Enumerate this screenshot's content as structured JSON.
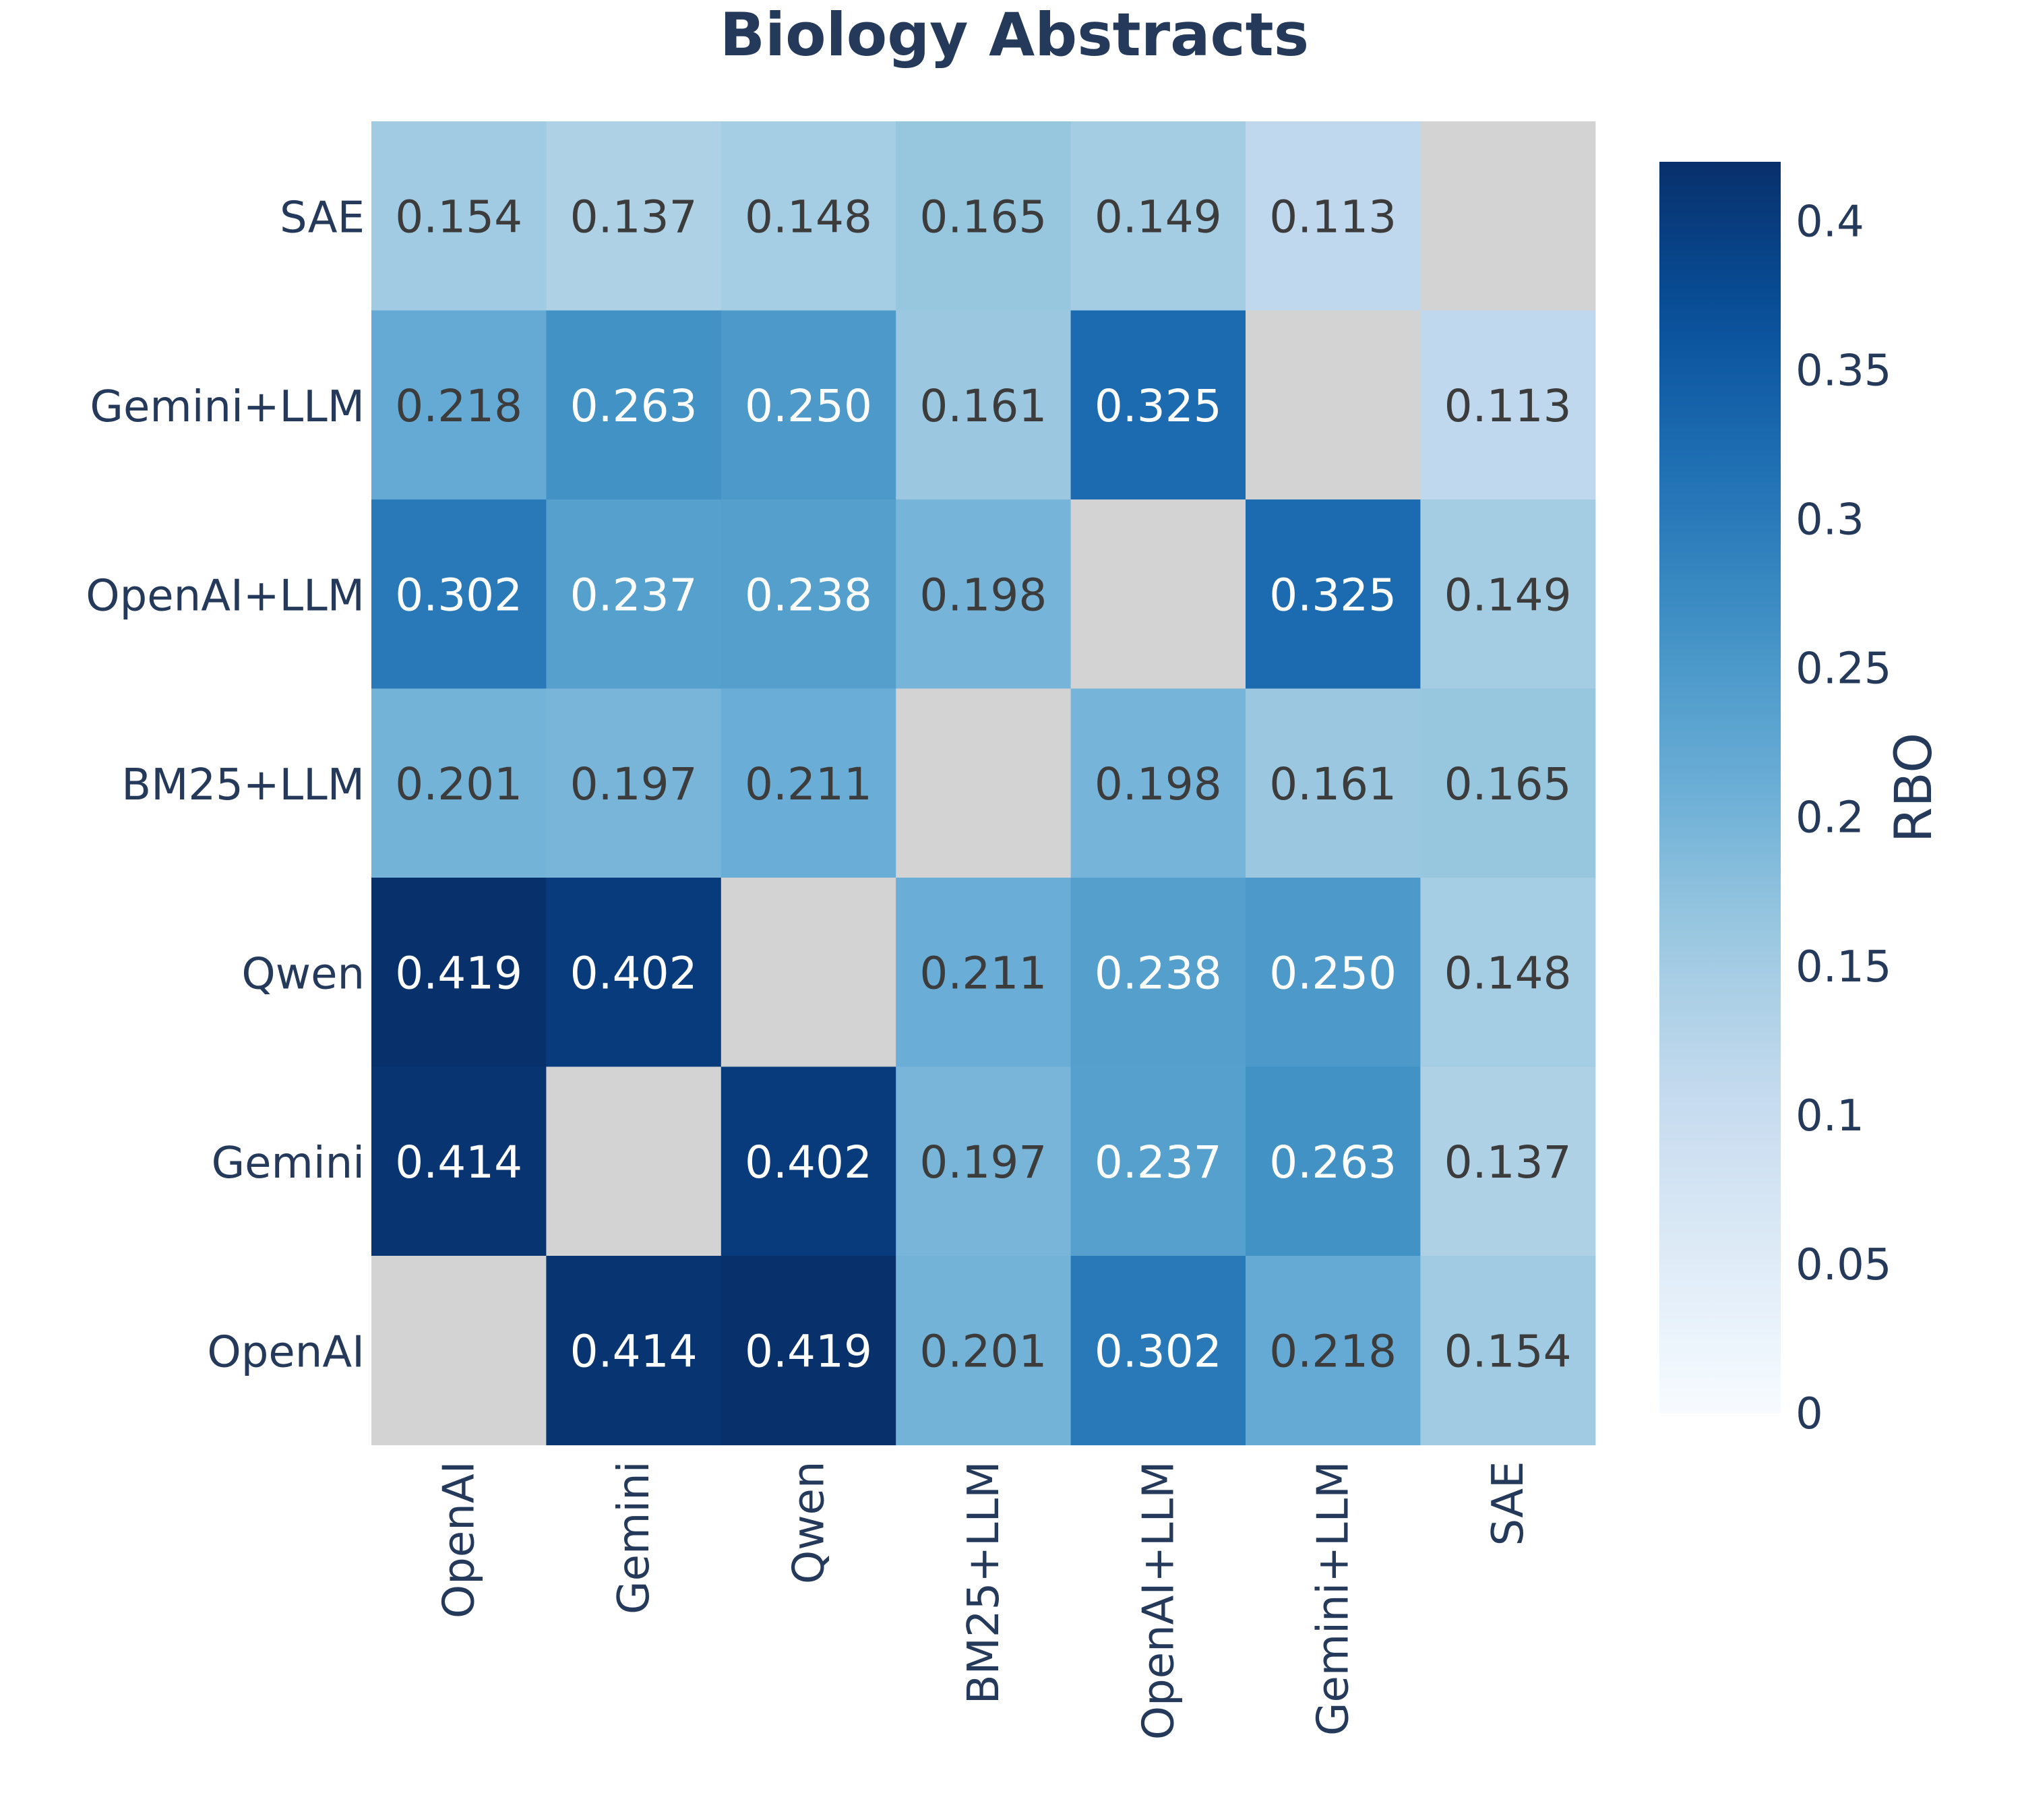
{
  "chart_data": {
    "type": "heatmap",
    "title": "Biology Abstracts",
    "x_categories": [
      "OpenAI",
      "Gemini",
      "Qwen",
      "BM25+LLM",
      "OpenAI+LLM",
      "Gemini+LLM",
      "SAE"
    ],
    "y_categories": [
      "SAE",
      "Gemini+LLM",
      "OpenAI+LLM",
      "BM25+LLM",
      "Qwen",
      "Gemini",
      "OpenAI"
    ],
    "values": [
      [
        0.154,
        0.137,
        0.148,
        0.165,
        0.149,
        0.113,
        null
      ],
      [
        0.218,
        0.263,
        0.25,
        0.161,
        0.325,
        null,
        0.113
      ],
      [
        0.302,
        0.237,
        0.238,
        0.198,
        null,
        0.325,
        0.149
      ],
      [
        0.201,
        0.197,
        0.211,
        null,
        0.198,
        0.161,
        0.165
      ],
      [
        0.419,
        0.402,
        null,
        0.211,
        0.238,
        0.25,
        0.148
      ],
      [
        0.414,
        null,
        0.402,
        0.197,
        0.237,
        0.263,
        0.137
      ],
      [
        null,
        0.414,
        0.419,
        0.201,
        0.302,
        0.218,
        0.154
      ]
    ],
    "cell_labels": [
      [
        "0.154",
        "0.137",
        "0.148",
        "0.165",
        "0.149",
        "0.113",
        ""
      ],
      [
        "0.218",
        "0.263",
        "0.250",
        "0.161",
        "0.325",
        "",
        "0.113"
      ],
      [
        "0.302",
        "0.237",
        "0.238",
        "0.198",
        "",
        "0.325",
        "0.149"
      ],
      [
        "0.201",
        "0.197",
        "0.211",
        "",
        "0.198",
        "0.161",
        "0.165"
      ],
      [
        "0.419",
        "0.402",
        "",
        "0.211",
        "0.238",
        "0.250",
        "0.148"
      ],
      [
        "0.414",
        "",
        "0.402",
        "0.197",
        "0.237",
        "0.263",
        "0.137"
      ],
      [
        "",
        "0.414",
        "0.419",
        "0.201",
        "0.302",
        "0.218",
        "0.154"
      ]
    ],
    "colorbar": {
      "label": "RBO",
      "range": [
        0,
        0.42
      ],
      "ticks": [
        0,
        0.05,
        0.1,
        0.15,
        0.2,
        0.25,
        0.3,
        0.35,
        0.4
      ],
      "tick_labels": [
        "0",
        "0.05",
        "0.1",
        "0.15",
        "0.2",
        "0.25",
        "0.3",
        "0.35",
        "0.4"
      ],
      "colormap": "Blues"
    },
    "missing_color": "#d3d3d3",
    "colors": {
      "text": "#253a5b",
      "cell_text_dark": "#3c3c3c",
      "cell_text_light": "#ffffff"
    },
    "grid": false
  }
}
